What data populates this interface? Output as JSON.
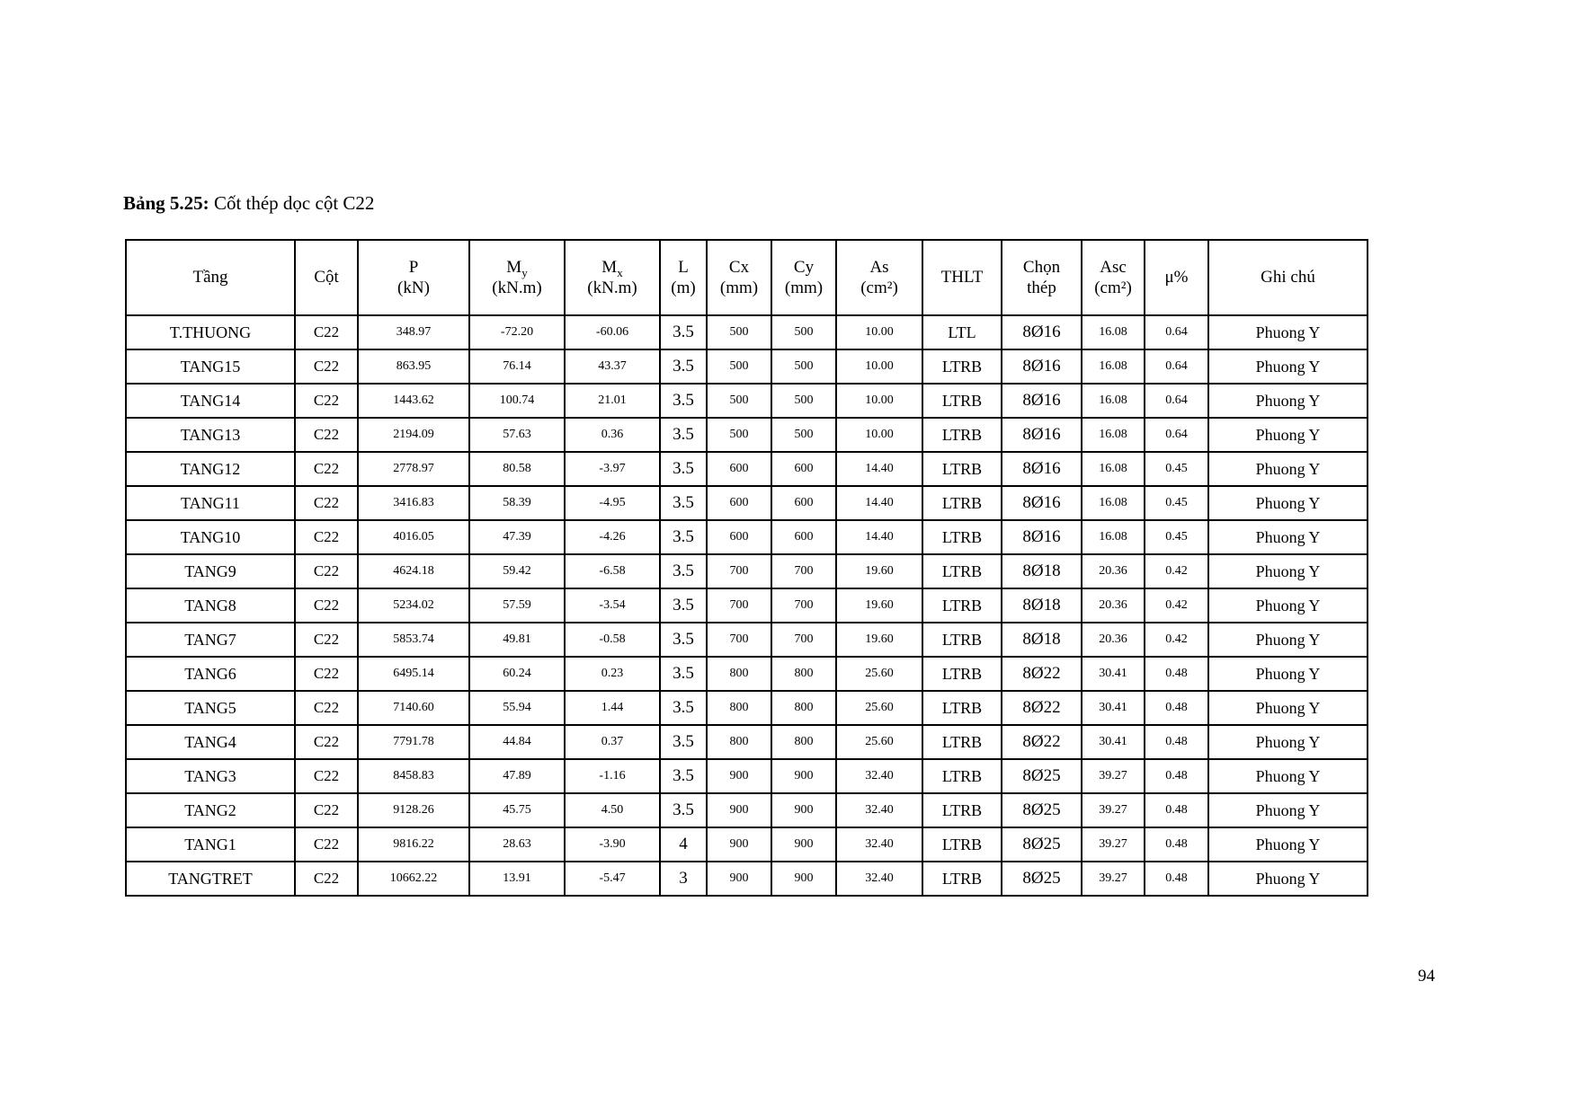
{
  "caption": {
    "bold": "Bảng 5.25:",
    "text": " Cốt thép dọc cột C22"
  },
  "page": {
    "number": "94"
  },
  "table": {
    "headers": [
      {
        "line1": "Tầng"
      },
      {
        "line1": "Cột"
      },
      {
        "line1": "P",
        "line2": "(kN)"
      },
      {
        "line1": "M",
        "sub": "y",
        "line2": "(kN.m)"
      },
      {
        "line1": "M",
        "sub": "x",
        "line2": "(kN.m)"
      },
      {
        "line1": "L",
        "line2": "(m)"
      },
      {
        "line1": "Cx",
        "line2": "(mm)"
      },
      {
        "line1": "Cy",
        "line2": "(mm)"
      },
      {
        "line1": "As",
        "line2": "(cm²)"
      },
      {
        "line1": "THLT"
      },
      {
        "line1": "Chọn",
        "line2": "thép"
      },
      {
        "line1": "Asc",
        "line2": "(cm²)"
      },
      {
        "line1": "μ%"
      },
      {
        "line1": "Ghi chú"
      }
    ],
    "rows": [
      [
        "T.THUONG",
        "C22",
        "348.97",
        "-72.20",
        "-60.06",
        "3.5",
        "500",
        "500",
        "10.00",
        "LTL",
        "8Ø16",
        "16.08",
        "0.64",
        "Phuong Y"
      ],
      [
        "TANG15",
        "C22",
        "863.95",
        "76.14",
        "43.37",
        "3.5",
        "500",
        "500",
        "10.00",
        "LTRB",
        "8Ø16",
        "16.08",
        "0.64",
        "Phuong Y"
      ],
      [
        "TANG14",
        "C22",
        "1443.62",
        "100.74",
        "21.01",
        "3.5",
        "500",
        "500",
        "10.00",
        "LTRB",
        "8Ø16",
        "16.08",
        "0.64",
        "Phuong Y"
      ],
      [
        "TANG13",
        "C22",
        "2194.09",
        "57.63",
        "0.36",
        "3.5",
        "500",
        "500",
        "10.00",
        "LTRB",
        "8Ø16",
        "16.08",
        "0.64",
        "Phuong Y"
      ],
      [
        "TANG12",
        "C22",
        "2778.97",
        "80.58",
        "-3.97",
        "3.5",
        "600",
        "600",
        "14.40",
        "LTRB",
        "8Ø16",
        "16.08",
        "0.45",
        "Phuong Y"
      ],
      [
        "TANG11",
        "C22",
        "3416.83",
        "58.39",
        "-4.95",
        "3.5",
        "600",
        "600",
        "14.40",
        "LTRB",
        "8Ø16",
        "16.08",
        "0.45",
        "Phuong Y"
      ],
      [
        "TANG10",
        "C22",
        "4016.05",
        "47.39",
        "-4.26",
        "3.5",
        "600",
        "600",
        "14.40",
        "LTRB",
        "8Ø16",
        "16.08",
        "0.45",
        "Phuong Y"
      ],
      [
        "TANG9",
        "C22",
        "4624.18",
        "59.42",
        "-6.58",
        "3.5",
        "700",
        "700",
        "19.60",
        "LTRB",
        "8Ø18",
        "20.36",
        "0.42",
        "Phuong Y"
      ],
      [
        "TANG8",
        "C22",
        "5234.02",
        "57.59",
        "-3.54",
        "3.5",
        "700",
        "700",
        "19.60",
        "LTRB",
        "8Ø18",
        "20.36",
        "0.42",
        "Phuong Y"
      ],
      [
        "TANG7",
        "C22",
        "5853.74",
        "49.81",
        "-0.58",
        "3.5",
        "700",
        "700",
        "19.60",
        "LTRB",
        "8Ø18",
        "20.36",
        "0.42",
        "Phuong Y"
      ],
      [
        "TANG6",
        "C22",
        "6495.14",
        "60.24",
        "0.23",
        "3.5",
        "800",
        "800",
        "25.60",
        "LTRB",
        "8Ø22",
        "30.41",
        "0.48",
        "Phuong Y"
      ],
      [
        "TANG5",
        "C22",
        "7140.60",
        "55.94",
        "1.44",
        "3.5",
        "800",
        "800",
        "25.60",
        "LTRB",
        "8Ø22",
        "30.41",
        "0.48",
        "Phuong Y"
      ],
      [
        "TANG4",
        "C22",
        "7791.78",
        "44.84",
        "0.37",
        "3.5",
        "800",
        "800",
        "25.60",
        "LTRB",
        "8Ø22",
        "30.41",
        "0.48",
        "Phuong Y"
      ],
      [
        "TANG3",
        "C22",
        "8458.83",
        "47.89",
        "-1.16",
        "3.5",
        "900",
        "900",
        "32.40",
        "LTRB",
        "8Ø25",
        "39.27",
        "0.48",
        "Phuong Y"
      ],
      [
        "TANG2",
        "C22",
        "9128.26",
        "45.75",
        "4.50",
        "3.5",
        "900",
        "900",
        "32.40",
        "LTRB",
        "8Ø25",
        "39.27",
        "0.48",
        "Phuong Y"
      ],
      [
        "TANG1",
        "C22",
        "9816.22",
        "28.63",
        "-3.90",
        "4",
        "900",
        "900",
        "32.40",
        "LTRB",
        "8Ø25",
        "39.27",
        "0.48",
        "Phuong Y"
      ],
      [
        "TANGTRET",
        "C22",
        "10662.22",
        "13.91",
        "-5.47",
        "3",
        "900",
        "900",
        "32.40",
        "LTRB",
        "8Ø25",
        "39.27",
        "0.48",
        "Phuong Y"
      ]
    ]
  }
}
